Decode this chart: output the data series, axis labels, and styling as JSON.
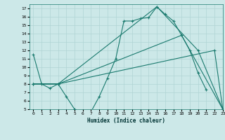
{
  "title": "",
  "xlabel": "Humidex (Indice chaleur)",
  "xlim": [
    -0.5,
    23
  ],
  "ylim": [
    5,
    17.5
  ],
  "xticks": [
    0,
    1,
    2,
    3,
    4,
    5,
    6,
    7,
    8,
    9,
    10,
    11,
    12,
    13,
    14,
    15,
    16,
    17,
    18,
    19,
    20,
    21,
    22,
    23
  ],
  "yticks": [
    5,
    6,
    7,
    8,
    9,
    10,
    11,
    12,
    13,
    14,
    15,
    16,
    17
  ],
  "bg_color": "#cce8e8",
  "grid_color": "#b0d4d4",
  "line_color": "#1a7a6e",
  "lines": [
    {
      "x": [
        0,
        1,
        2,
        3,
        4,
        5,
        6,
        7,
        8,
        9,
        10,
        11,
        12,
        13,
        14,
        15,
        16,
        17,
        18,
        19,
        20,
        21
      ],
      "y": [
        11.5,
        8.0,
        7.5,
        8.0,
        6.5,
        5.0,
        4.7,
        4.7,
        6.5,
        8.7,
        11.0,
        15.5,
        15.5,
        15.8,
        15.9,
        17.2,
        16.3,
        15.5,
        13.8,
        12.0,
        9.3,
        7.3
      ]
    },
    {
      "x": [
        0,
        3,
        22,
        23
      ],
      "y": [
        8.0,
        8.0,
        12.0,
        5.0
      ]
    },
    {
      "x": [
        0,
        3,
        18,
        23
      ],
      "y": [
        8.0,
        8.0,
        13.8,
        5.0
      ]
    },
    {
      "x": [
        0,
        3,
        15,
        20,
        23
      ],
      "y": [
        8.0,
        8.0,
        17.2,
        12.0,
        5.0
      ]
    }
  ]
}
